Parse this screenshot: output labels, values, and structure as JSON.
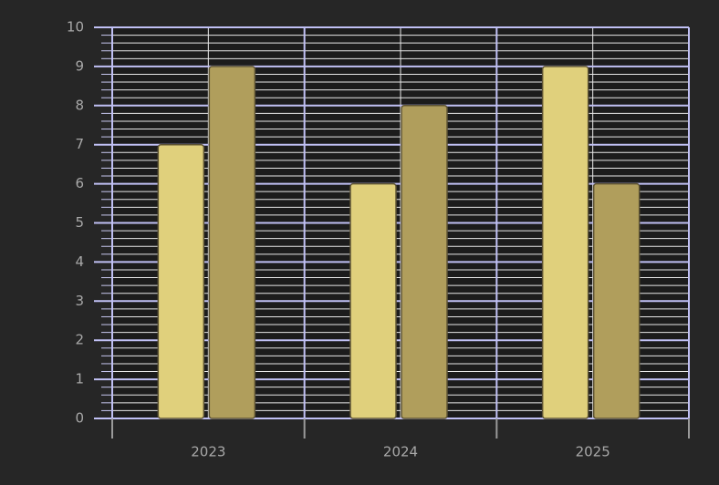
{
  "chart_data": {
    "type": "bar",
    "categories": [
      "2023",
      "2024",
      "2025"
    ],
    "series": [
      {
        "color": "#e0d07c",
        "values": [
          7,
          6,
          9
        ]
      },
      {
        "color": "#b09e5c",
        "values": [
          9,
          8,
          6
        ]
      }
    ],
    "ylim": [
      0,
      10
    ],
    "yticks": [
      0,
      1,
      2,
      3,
      4,
      5,
      6,
      7,
      8,
      9,
      10
    ],
    "grid": true,
    "minor_grid": true
  }
}
